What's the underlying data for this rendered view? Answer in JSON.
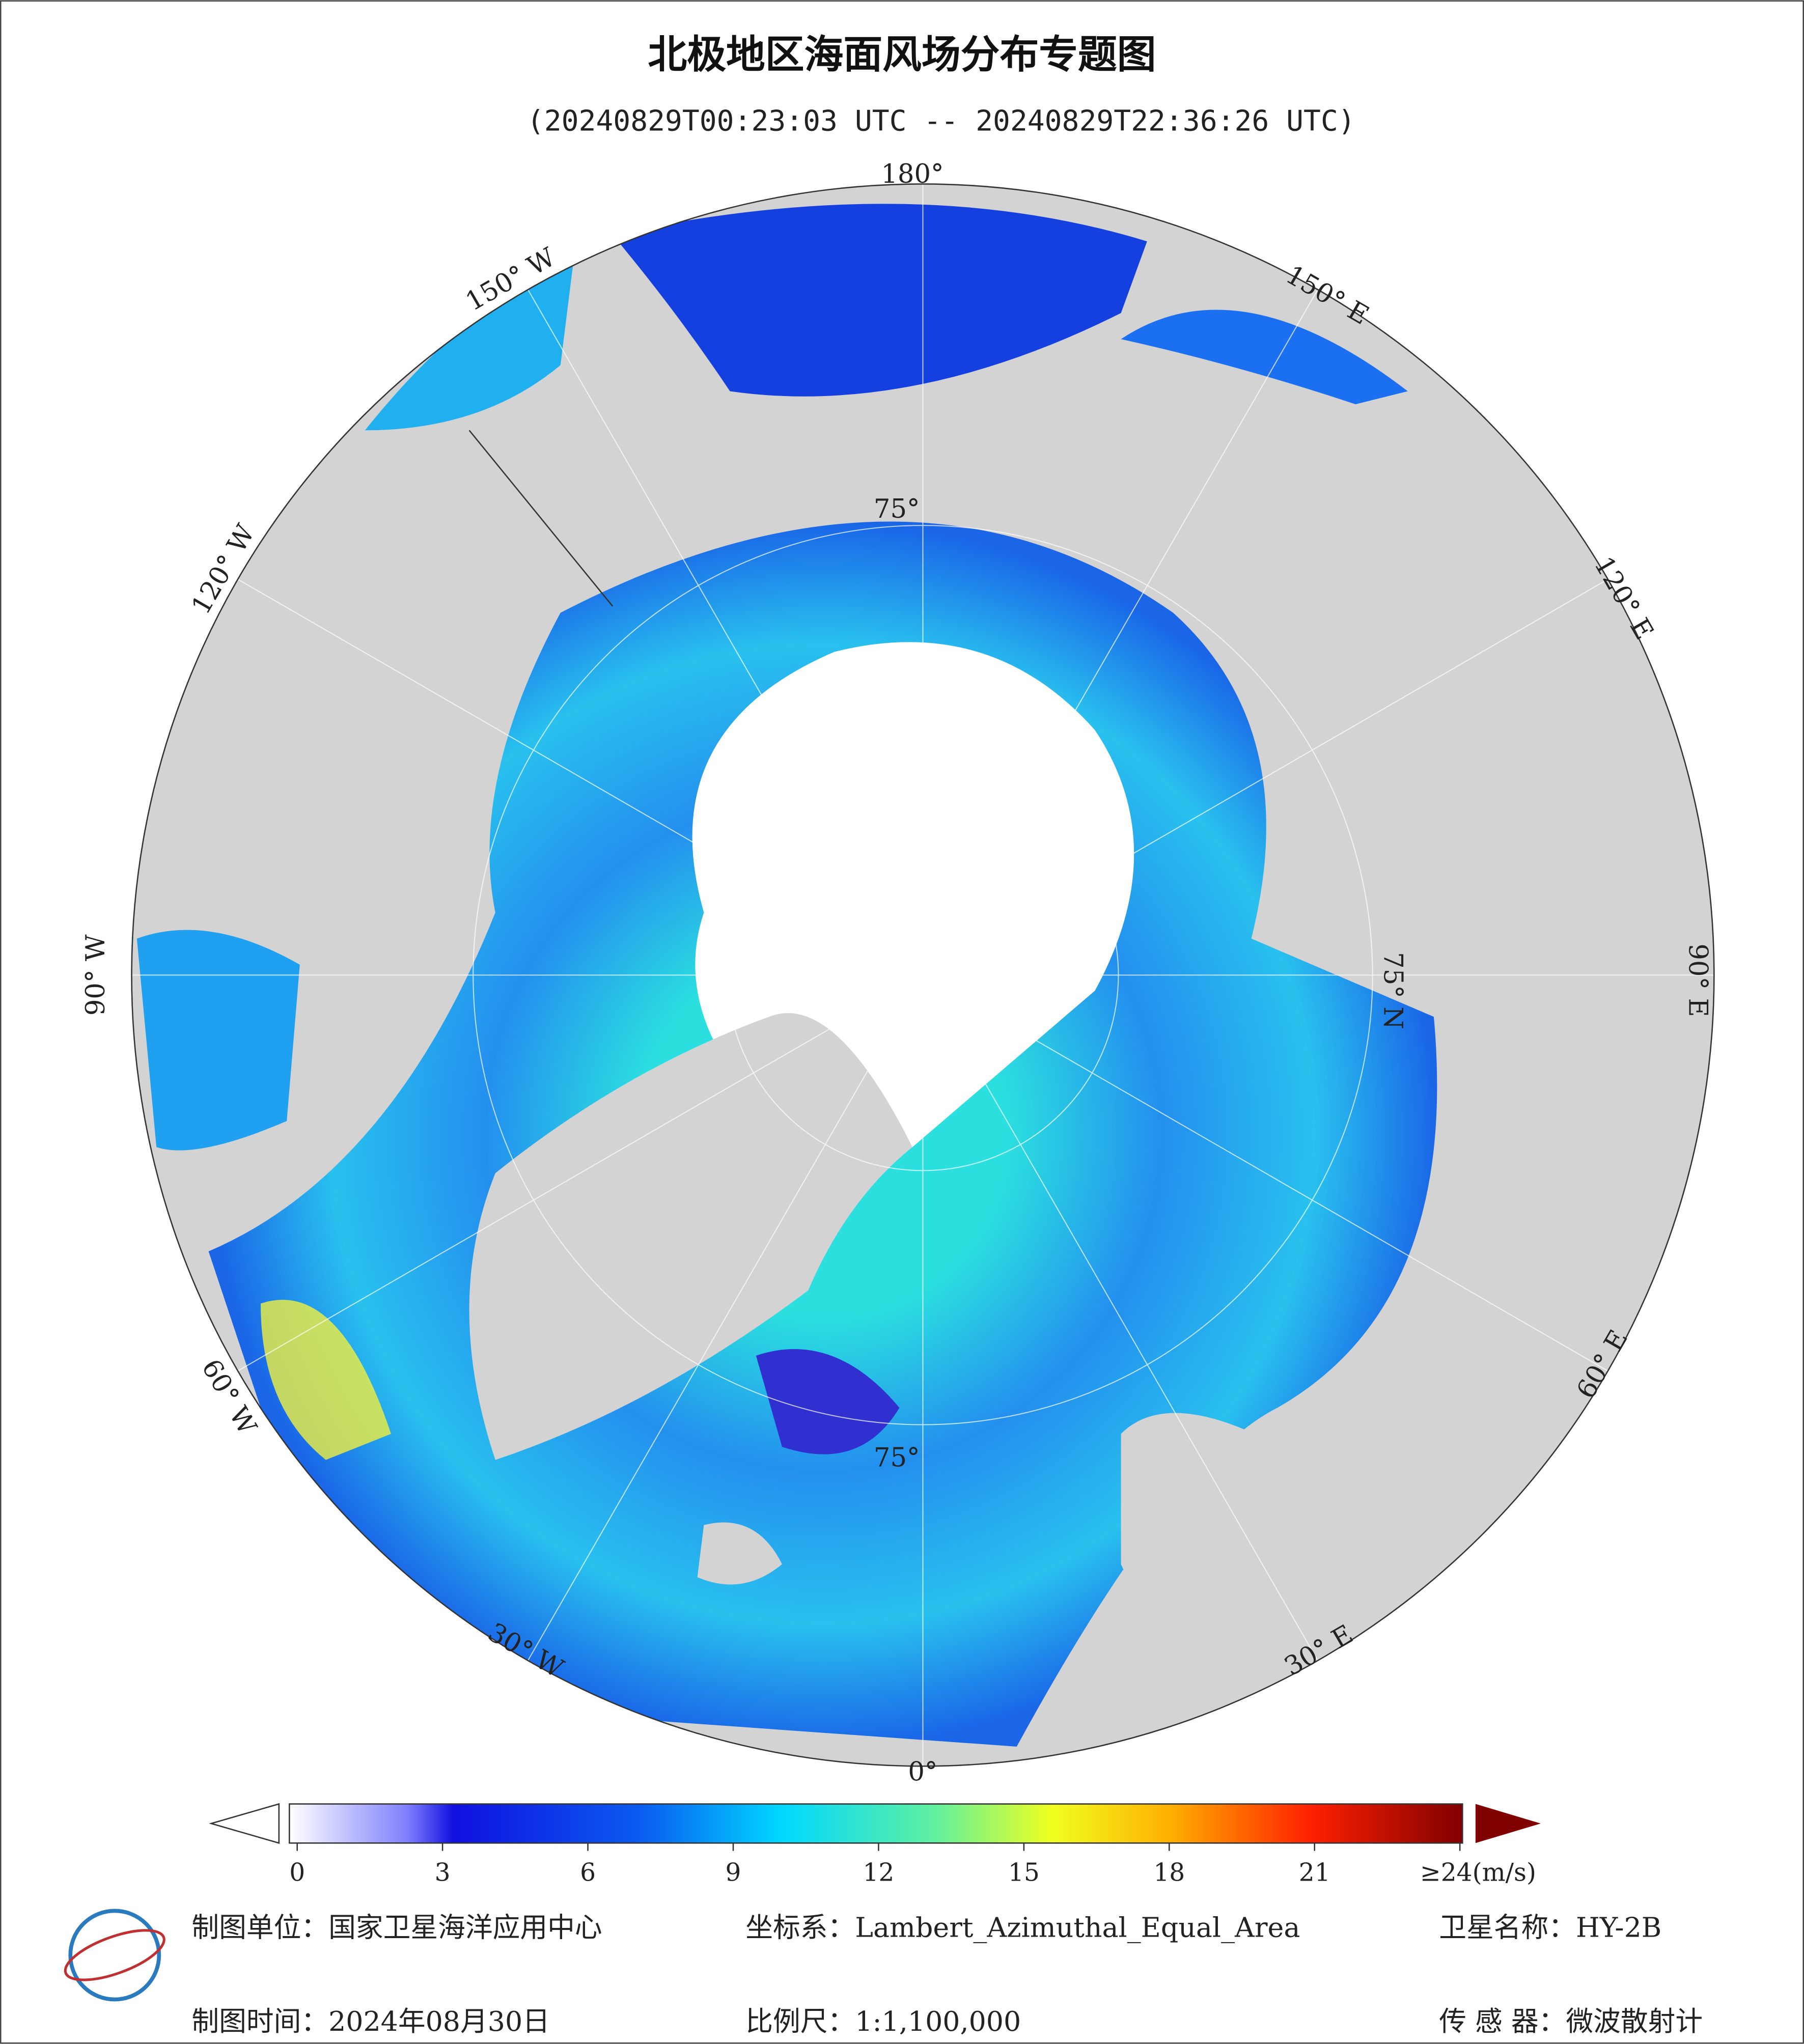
{
  "header": {
    "title": "北极地区海面风场分布专题图",
    "subtitle": "(20240829T00:23:03 UTC -- 20240829T22:36:26 UTC)"
  },
  "map": {
    "lon_labels": [
      "180°",
      "150° E",
      "120° E",
      "90° E",
      "60° E",
      "30° E",
      "0°",
      "30° W",
      "60° W",
      "90° W",
      "120° W",
      "150° W"
    ],
    "lat_labels": [
      "75°",
      "75° N",
      "75°"
    ]
  },
  "colorbar": {
    "lim": [
      0,
      24
    ],
    "ticks": [
      0,
      3,
      6,
      9,
      12,
      15,
      18,
      21,
      {
        "value": 24,
        "label": "≥24(m/s)"
      }
    ]
  },
  "footer": {
    "unit": "制图单位：国家卫星海洋应用中心",
    "crs": "坐标系：Lambert_Azimuthal_Equal_Area",
    "satellite": "卫星名称：HY-2B",
    "date": "制图时间：2024年08月30日",
    "scale": "比例尺：1:1,100,000",
    "sensor": "传 感 器：微波散射计"
  }
}
